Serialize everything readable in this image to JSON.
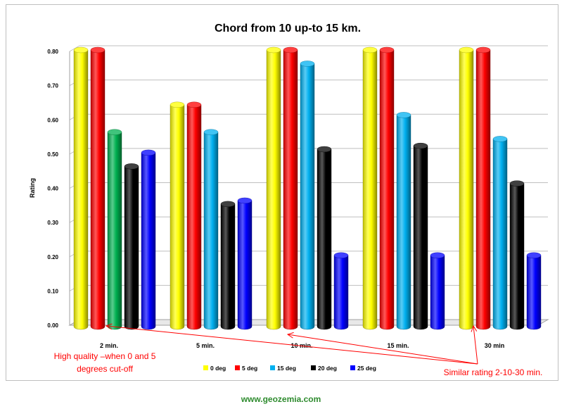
{
  "chart_data": {
    "type": "bar",
    "title": "Chord from 10 up-to 15 km.",
    "ylabel": "Rating",
    "xlabel": "",
    "ylim": [
      0,
      0.8
    ],
    "yticks": [
      "0.00",
      "0.10",
      "0.20",
      "0.30",
      "0.40",
      "0.50",
      "0.60",
      "0.70",
      "0.80"
    ],
    "grid": true,
    "legend_position": "bottom",
    "categories": [
      "2 min.",
      "5 min.",
      "10 min.",
      "15 min.",
      "30 min"
    ],
    "series": [
      {
        "name": "0 deg",
        "color": "#ffff00",
        "values": [
          0.8,
          0.64,
          0.8,
          0.8,
          0.8
        ]
      },
      {
        "name": "5 deg",
        "color": "#ff0000",
        "values": [
          0.8,
          0.64,
          0.8,
          0.8,
          0.8
        ]
      },
      {
        "name": "15 deg",
        "color": "#00b0f0",
        "values": [
          0.56,
          0.56,
          0.76,
          0.61,
          0.54
        ]
      },
      {
        "name": "20 deg",
        "color": "#000000",
        "values": [
          0.46,
          0.35,
          0.51,
          0.52,
          0.41
        ]
      },
      {
        "name": "25 deg",
        "color": "#0000ff",
        "values": [
          0.5,
          0.36,
          0.2,
          0.2,
          0.2
        ]
      }
    ],
    "special_bar_color": {
      "series": 2,
      "category": 0,
      "color": "#00b050"
    },
    "annotations": [
      {
        "text_lines": [
          "High quality –when 0 and 5",
          "degrees cut-off"
        ],
        "color": "#ff0000"
      },
      {
        "text_lines": [
          "Similar rating 2-10-30 min."
        ],
        "color": "#ff0000"
      }
    ]
  },
  "footer": {
    "text": "www.geozemia.com"
  }
}
